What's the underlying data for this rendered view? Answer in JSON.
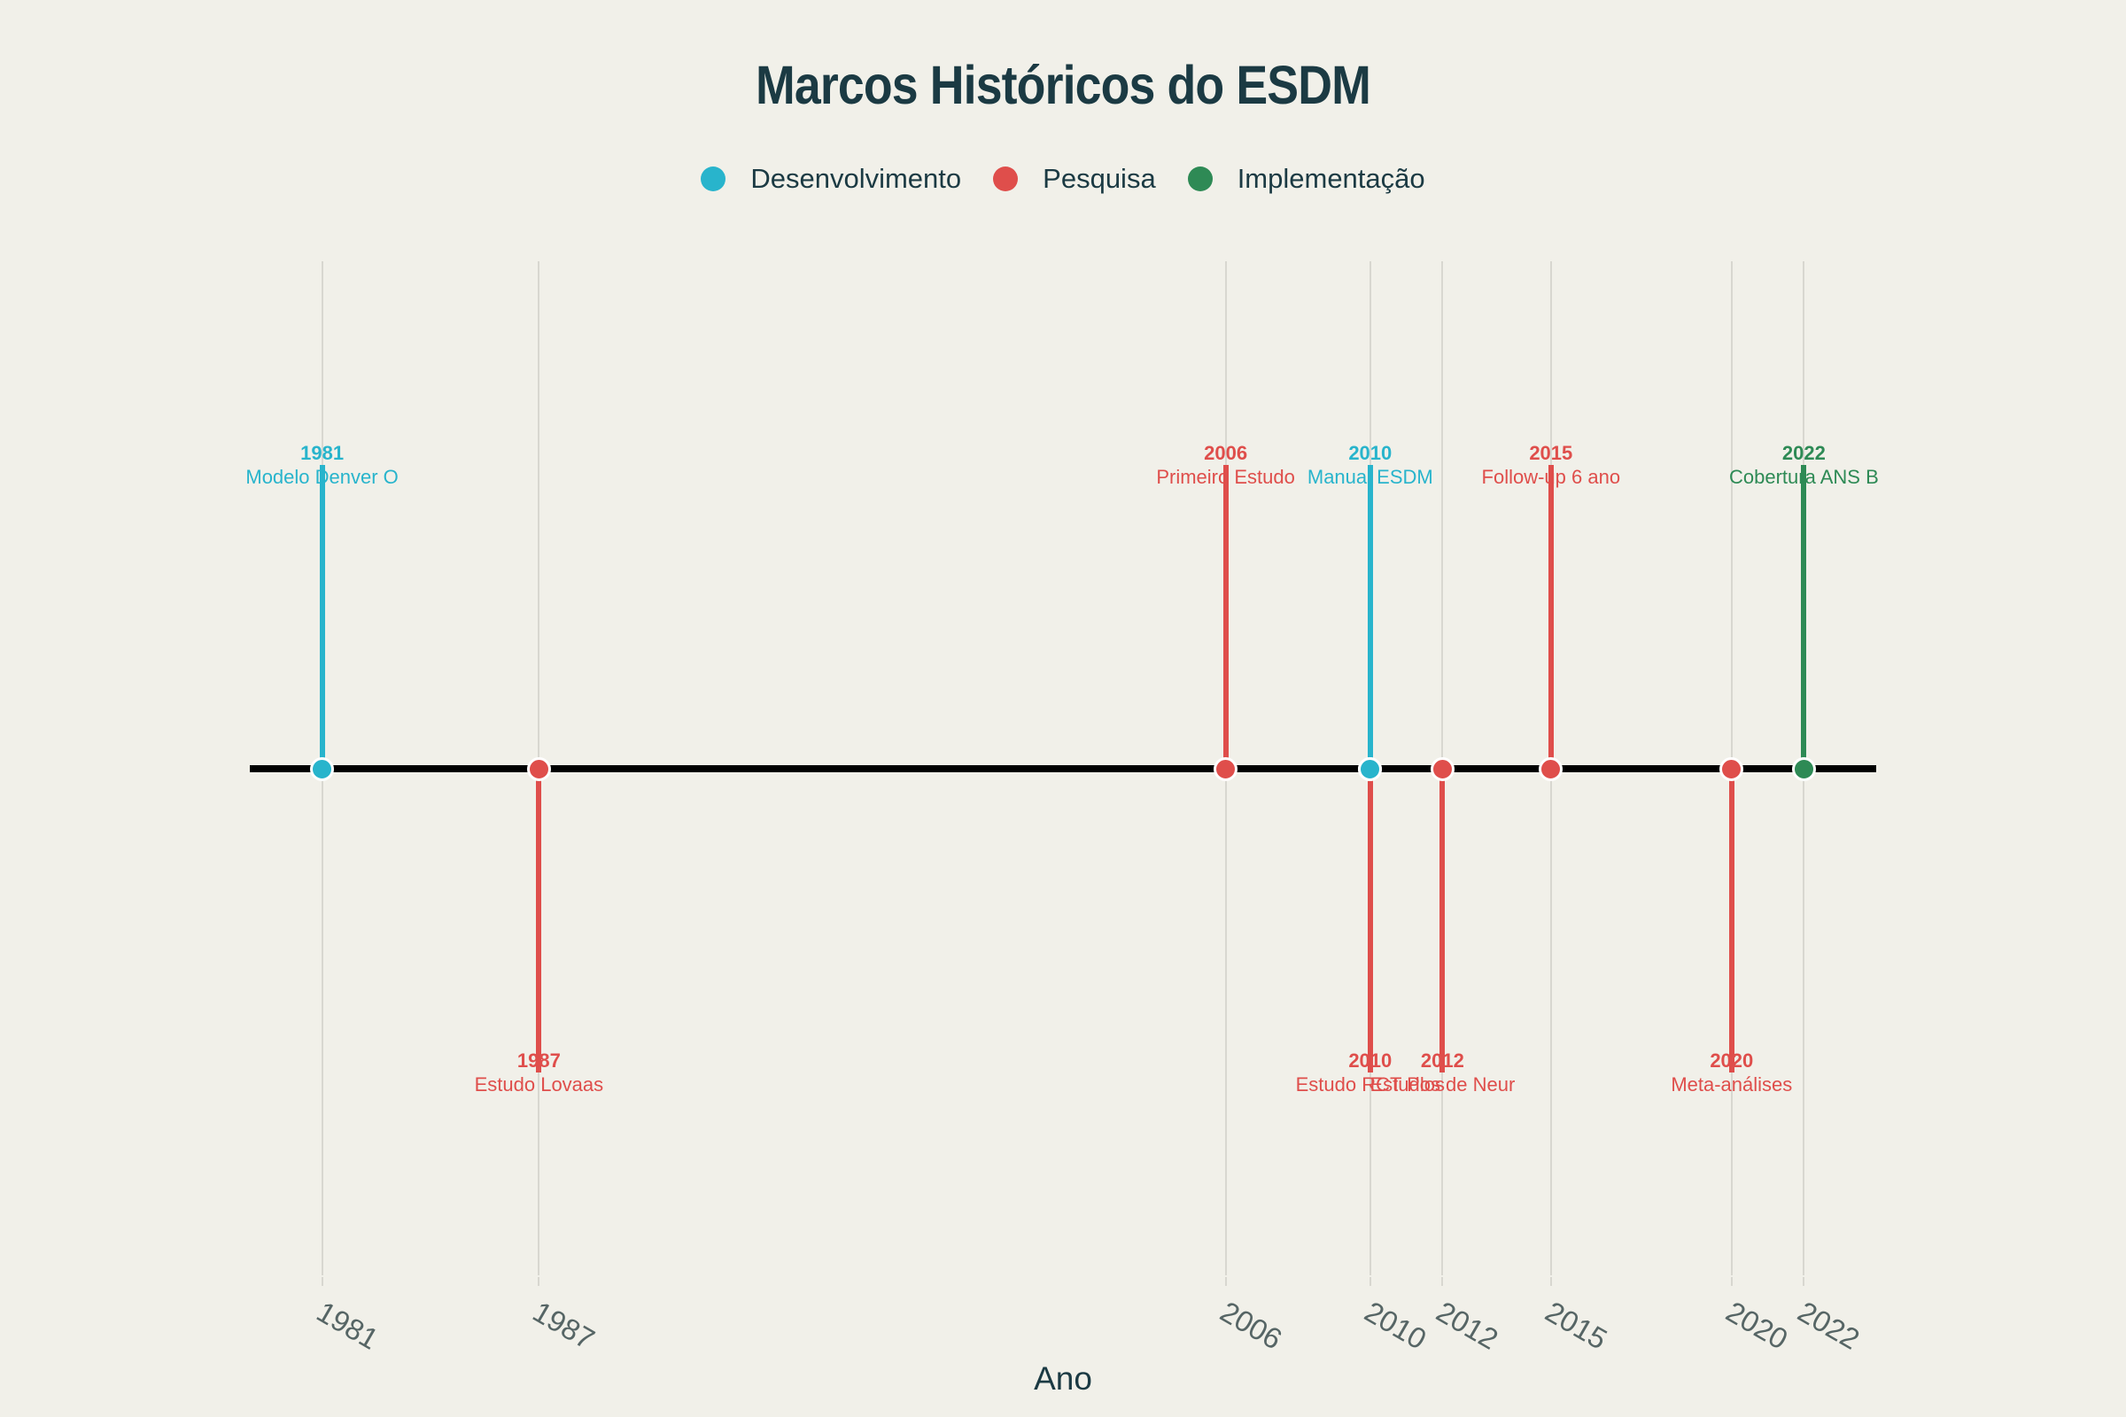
{
  "title": {
    "text": "Marcos Históricos do ESDM"
  },
  "legend": {
    "items": [
      {
        "label": "Desenvolvimento",
        "color": "#28b4cc"
      },
      {
        "label": "Pesquisa",
        "color": "#df4e4b"
      },
      {
        "label": "Implementação",
        "color": "#2e8a55"
      }
    ]
  },
  "colors": {
    "background": "#f1f0e9",
    "title": "#1b3a43",
    "legend_text": "#1b3a43",
    "tick_label": "#566565",
    "gridline": "#d8d7d0",
    "axis_line": "#000000",
    "marker_ring": "#ffffff"
  },
  "chart_data": {
    "type": "timeline",
    "title": "Marcos Históricos do ESDM",
    "xlabel": "Ano",
    "x_ticks": [
      "1981",
      "1987",
      "2006",
      "2010",
      "2012",
      "2015",
      "2020",
      "2022"
    ],
    "x_range": [
      1979,
      2024
    ],
    "legend_position": "top-center",
    "grid": true,
    "categories": [
      {
        "name": "Desenvolvimento",
        "color": "#28b4cc"
      },
      {
        "name": "Pesquisa",
        "color": "#df4e4b"
      },
      {
        "name": "Implementação",
        "color": "#2e8a55"
      }
    ],
    "events": [
      {
        "year": 1981,
        "label": "Modelo Denver O",
        "category": "Desenvolvimento",
        "direction": "up"
      },
      {
        "year": 1987,
        "label": "Estudo Lovaas",
        "category": "Pesquisa",
        "direction": "down"
      },
      {
        "year": 2006,
        "label": "Primeiro Estudo",
        "category": "Pesquisa",
        "direction": "up"
      },
      {
        "year": 2010,
        "label": "Estudo RCT Plos",
        "category": "Pesquisa",
        "direction": "down"
      },
      {
        "year": 2010,
        "label": "Manual ESDM",
        "category": "Desenvolvimento",
        "direction": "up"
      },
      {
        "year": 2012,
        "label": "Estudos de Neur",
        "category": "Pesquisa",
        "direction": "down"
      },
      {
        "year": 2015,
        "label": "Follow-up 6 ano",
        "category": "Pesquisa",
        "direction": "up"
      },
      {
        "year": 2020,
        "label": "Meta-análises",
        "category": "Pesquisa",
        "direction": "down"
      },
      {
        "year": 2022,
        "label": "Cobertura ANS B",
        "category": "Implementação",
        "direction": "up"
      }
    ]
  }
}
